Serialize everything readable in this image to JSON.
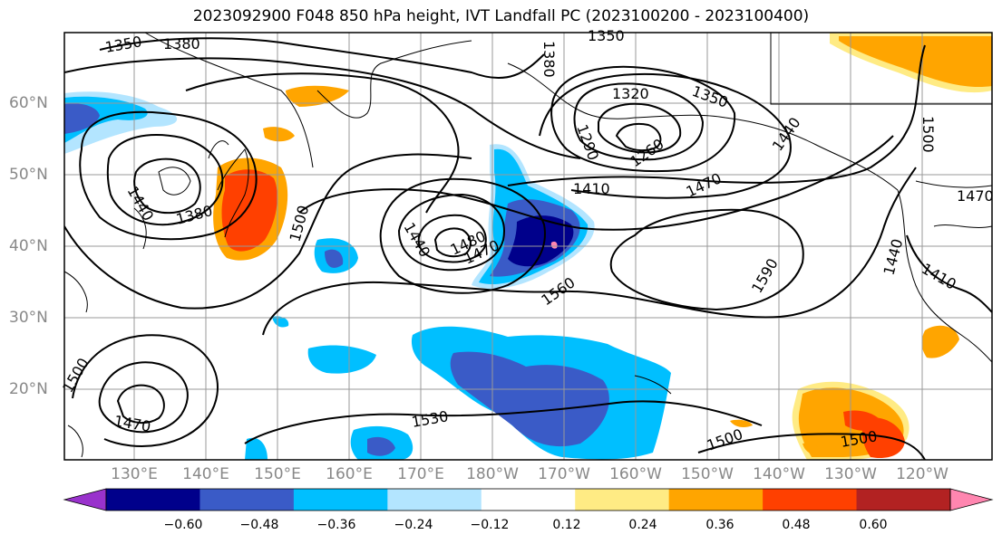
{
  "title": "2023092900 F048 850 hPa height, IVT Landfall PC (2023100200 - 2023100400)",
  "lat_labels": [
    "60°N",
    "50°N",
    "40°N",
    "30°N",
    "20°N"
  ],
  "lon_labels": [
    "130°E",
    "140°E",
    "150°E",
    "160°E",
    "170°E",
    "180°W",
    "170°W",
    "160°W",
    "150°W",
    "140°W",
    "130°W",
    "120°W"
  ],
  "contour_labels": [
    "1350",
    "1380",
    "1380",
    "1350",
    "1320",
    "1350",
    "1290",
    "1260",
    "1410",
    "1470",
    "1440",
    "1500",
    "1440",
    "1380",
    "1500",
    "1440",
    "1480",
    "1470",
    "1560",
    "1590",
    "1470",
    "1440",
    "1410",
    "1500",
    "1470",
    "1530",
    "1500",
    "1500"
  ],
  "colorbar": {
    "ticks": [
      "−0.60",
      "−0.48",
      "−0.36",
      "−0.24",
      "−0.12",
      "0.12",
      "0.24",
      "0.36",
      "0.48",
      "0.60"
    ],
    "colors": [
      "#9932cc",
      "#00008b",
      "#3a5bc7",
      "#00bfff",
      "#b3e5ff",
      "#ffffff",
      "#ffeb84",
      "#ffa500",
      "#ff4000",
      "#b22222",
      "#ff86b0"
    ]
  }
}
